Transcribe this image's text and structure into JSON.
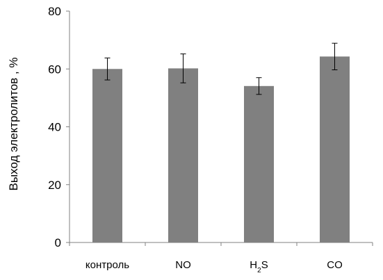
{
  "chart_data": {
    "type": "bar",
    "title": "",
    "xlabel": "",
    "ylabel": "Выход электролитов , %",
    "ylim": [
      0,
      80
    ],
    "yticks": [
      0,
      20,
      40,
      60,
      80
    ],
    "grid": false,
    "bar_color": "#808080",
    "categories": [
      {
        "text": "контроль",
        "sub": "",
        "rest": ""
      },
      {
        "text": "NO",
        "sub": "",
        "rest": ""
      },
      {
        "text": "H",
        "sub": "2",
        "rest": "S"
      },
      {
        "text": "CO",
        "sub": "",
        "rest": ""
      }
    ],
    "series": [
      {
        "values": [
          60.0,
          60.2,
          54.1,
          64.3
        ],
        "errors": [
          3.8,
          5.0,
          2.9,
          4.6
        ]
      }
    ]
  }
}
